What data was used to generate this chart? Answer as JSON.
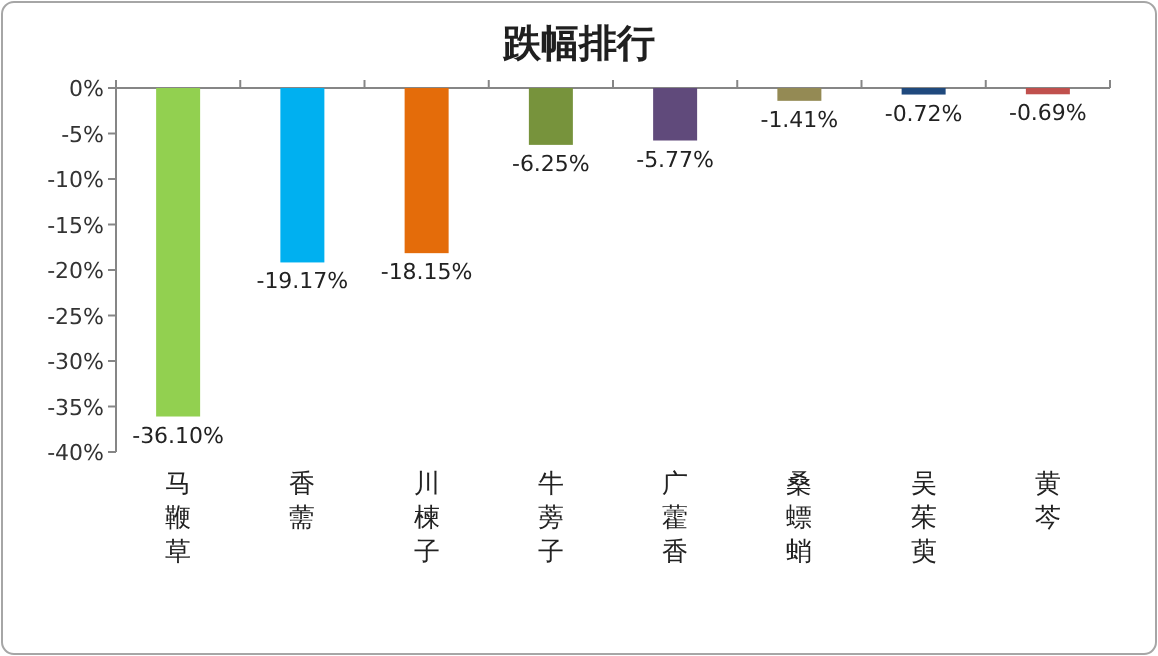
{
  "chart_data": {
    "type": "bar",
    "title": "跌幅排行",
    "categories": [
      "马鞭草",
      "香薷",
      "川楝子",
      "牛蒡子",
      "广藿香",
      "桑螵蛸",
      "吴茱萸",
      "黄芩"
    ],
    "values": [
      -36.1,
      -19.17,
      -18.15,
      -6.25,
      -5.77,
      -1.41,
      -0.72,
      -0.69
    ],
    "colors": [
      "#92d050",
      "#00b0f0",
      "#e46c0a",
      "#77933c",
      "#604a7b",
      "#948a54",
      "#1f497d",
      "#c0504d"
    ],
    "value_labels": [
      "-36.10%",
      "-19.17%",
      "-18.15%",
      "-6.25%",
      "-5.77%",
      "-1.41%",
      "-0.72%",
      "-0.69%"
    ],
    "ylim": [
      -40,
      0
    ],
    "yticks": [
      {
        "value": 0,
        "label": "0%"
      },
      {
        "value": -5,
        "label": "-5%"
      },
      {
        "value": -10,
        "label": "-10%"
      },
      {
        "value": -15,
        "label": "-15%"
      },
      {
        "value": -20,
        "label": "-20%"
      },
      {
        "value": -25,
        "label": "-25%"
      },
      {
        "value": -30,
        "label": "-30%"
      },
      {
        "value": -35,
        "label": "-35%"
      },
      {
        "value": -40,
        "label": "-40%"
      }
    ]
  }
}
